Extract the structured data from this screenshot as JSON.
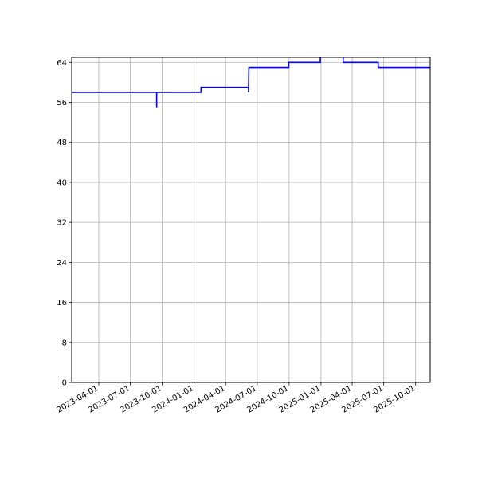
{
  "chart_data": {
    "type": "line",
    "title": "",
    "xlabel": "",
    "ylabel": "",
    "x_axis_type": "date",
    "xlim": [
      "2023-01-13",
      "2025-11-12"
    ],
    "ylim": [
      0,
      65
    ],
    "x_ticks": [
      "2023-04-01",
      "2023-07-01",
      "2023-10-01",
      "2024-01-01",
      "2024-04-01",
      "2024-07-01",
      "2024-10-01",
      "2025-01-01",
      "2025-04-01",
      "2025-07-01",
      "2025-10-01"
    ],
    "y_ticks": [
      0,
      8,
      16,
      24,
      32,
      40,
      48,
      56,
      64
    ],
    "grid": true,
    "legend": "none",
    "series": [
      {
        "color": "#0000ff",
        "points": [
          [
            "2023-01-13",
            58
          ],
          [
            "2023-09-15",
            58
          ],
          [
            "2023-09-15",
            55
          ],
          [
            "2023-09-15",
            58
          ],
          [
            "2024-01-21",
            58
          ],
          [
            "2024-01-21",
            59
          ],
          [
            "2024-06-06",
            59
          ],
          [
            "2024-06-06",
            58
          ],
          [
            "2024-06-07",
            63
          ],
          [
            "2024-09-30",
            63
          ],
          [
            "2024-09-30",
            64
          ],
          [
            "2024-12-30",
            64
          ],
          [
            "2024-12-30",
            66
          ],
          [
            "2025-03-06",
            66
          ],
          [
            "2025-03-06",
            64
          ],
          [
            "2025-06-15",
            64
          ],
          [
            "2025-06-15",
            63
          ],
          [
            "2025-11-12",
            63
          ]
        ]
      }
    ]
  }
}
